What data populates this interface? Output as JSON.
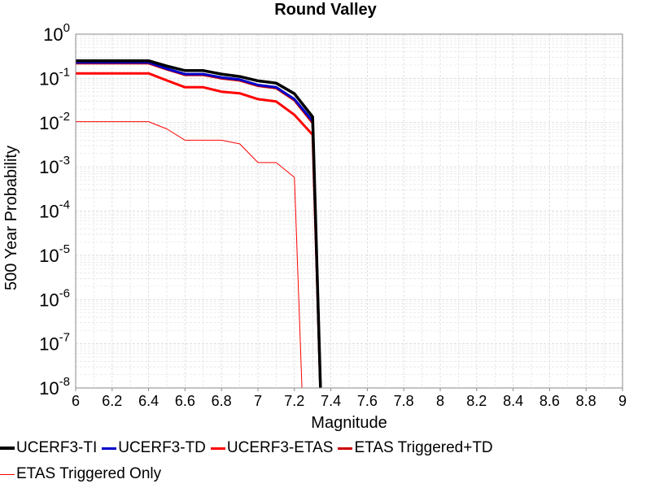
{
  "chart_data": {
    "type": "line",
    "title": "Round Valley",
    "xlabel": "Magnitude",
    "ylabel": "500 Year Probability",
    "xlim": [
      6,
      9
    ],
    "ylim": [
      1e-08,
      1
    ],
    "yscale": "log",
    "grid": true,
    "legend_position": "bottom",
    "x_ticks": [
      "6",
      "6.2",
      "6.4",
      "6.6",
      "6.8",
      "7",
      "7.2",
      "7.4",
      "7.6",
      "7.8",
      "8",
      "8.2",
      "8.4",
      "8.6",
      "8.8",
      "9"
    ],
    "y_ticks": [
      {
        "base": "10",
        "exp": "0"
      },
      {
        "base": "10",
        "exp": "-1"
      },
      {
        "base": "10",
        "exp": "-2"
      },
      {
        "base": "10",
        "exp": "-3"
      },
      {
        "base": "10",
        "exp": "-4"
      },
      {
        "base": "10",
        "exp": "-5"
      },
      {
        "base": "10",
        "exp": "-6"
      },
      {
        "base": "10",
        "exp": "-7"
      },
      {
        "base": "10",
        "exp": "-8"
      }
    ],
    "series": [
      {
        "name": "UCERF3-TI",
        "color": "#000000",
        "width": 3.5,
        "x": [
          6.0,
          6.4,
          6.5,
          6.6,
          6.7,
          6.8,
          6.9,
          7.0,
          7.1,
          7.2,
          7.3,
          7.35
        ],
        "y": [
          0.25,
          0.25,
          0.19,
          0.15,
          0.15,
          0.125,
          0.11,
          0.088,
          0.078,
          0.045,
          0.0135,
          1e-09
        ]
      },
      {
        "name": "UCERF3-TD",
        "color": "#0000cc",
        "width": 3,
        "x": [
          6.0,
          6.4,
          6.5,
          6.6,
          6.7,
          6.8,
          6.9,
          7.0,
          7.1,
          7.2,
          7.3,
          7.35
        ],
        "y": [
          0.23,
          0.23,
          0.165,
          0.125,
          0.125,
          0.105,
          0.094,
          0.071,
          0.063,
          0.034,
          0.0108,
          1e-09
        ]
      },
      {
        "name": "UCERF3-ETAS",
        "color": "#ff0000",
        "width": 3,
        "x": [
          6.0,
          6.4,
          6.5,
          6.6,
          6.7,
          6.8,
          6.9,
          7.0,
          7.1,
          7.2,
          7.3,
          7.35
        ],
        "y": [
          0.13,
          0.13,
          0.09,
          0.063,
          0.063,
          0.05,
          0.046,
          0.034,
          0.03,
          0.015,
          0.0053,
          1e-09
        ]
      },
      {
        "name": "ETAS Triggered+TD",
        "color": "#cc0000",
        "width": 3,
        "x": [
          6.0,
          6.4,
          6.5,
          6.6,
          6.7,
          6.8,
          6.9,
          7.0,
          7.1,
          7.2,
          7.3,
          7.35
        ],
        "y": [
          0.22,
          0.22,
          0.16,
          0.12,
          0.12,
          0.1,
          0.09,
          0.068,
          0.06,
          0.032,
          0.0098,
          1e-09
        ]
      },
      {
        "name": "ETAS Triggered Only",
        "color": "#ff0000",
        "width": 1,
        "x": [
          6.0,
          6.4,
          6.5,
          6.6,
          6.7,
          6.8,
          6.9,
          7.0,
          7.1,
          7.2,
          7.25
        ],
        "y": [
          0.0105,
          0.0105,
          0.0072,
          0.004,
          0.004,
          0.004,
          0.0033,
          0.00125,
          0.00125,
          0.00058,
          1e-09
        ]
      }
    ]
  }
}
